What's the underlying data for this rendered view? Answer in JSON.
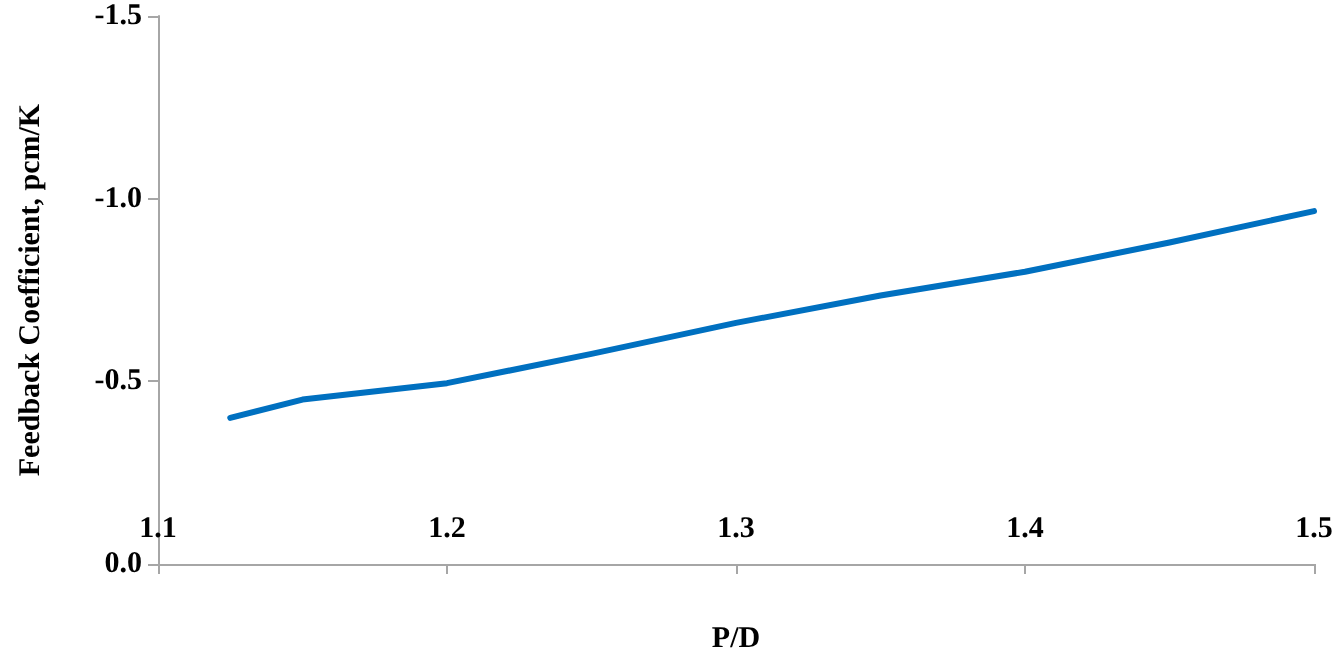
{
  "chart_data": {
    "type": "line",
    "xlabel": "P/D",
    "ylabel": "Feedback Coefficient, pcm/K",
    "x": [
      1.125,
      1.15,
      1.2,
      1.25,
      1.3,
      1.35,
      1.4,
      1.45,
      1.5
    ],
    "series": [
      {
        "color": "#0070c0",
        "values": [
          -0.4,
          -0.45,
          -0.495,
          -0.575,
          -0.66,
          -0.735,
          -0.8,
          -0.88,
          -0.966
        ]
      }
    ],
    "xlim": [
      1.1,
      1.5
    ],
    "xticks": [
      1.1,
      1.2,
      1.3,
      1.4,
      1.5
    ],
    "ylim": [
      0,
      -1.5
    ],
    "yticks": [
      {
        "value": 0,
        "label": "0.0"
      },
      -0.5,
      {
        "value": -1,
        "label": "-1.0"
      },
      -1.5
    ],
    "grid": false,
    "marker": "none",
    "line_style": "solid"
  }
}
